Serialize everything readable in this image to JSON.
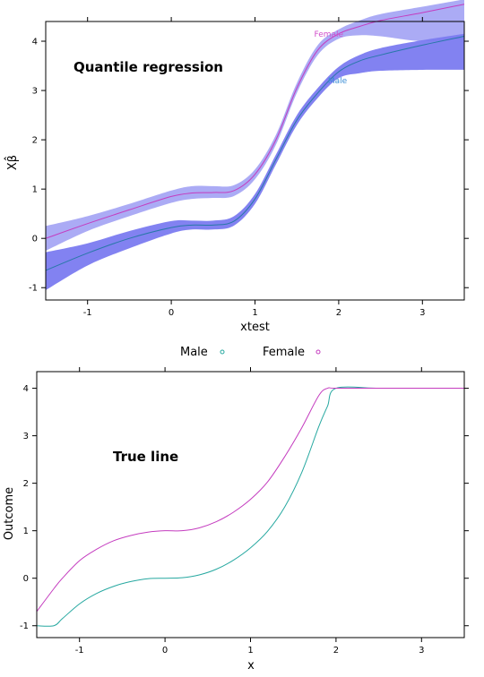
{
  "colors": {
    "male_line": "#2878a8",
    "female_line": "#c43cbf",
    "male_band": "#7b7bf0",
    "female_band": "#a7a7f4",
    "male_symbol": "#26a8a0",
    "female_symbol": "#c43cbf",
    "male_label": "#3d8fd6",
    "female_label": "#d24fcb"
  },
  "legend": {
    "items": [
      {
        "label": "Male",
        "symbol": "open-circle"
      },
      {
        "label": "Female",
        "symbol": "open-circle"
      }
    ]
  },
  "chart_data": [
    {
      "type": "area",
      "title": "Quantile regression",
      "xlabel": "xtest",
      "ylabel": "Xβ̂",
      "xlim": [
        -1.5,
        3.5
      ],
      "ylim": [
        -1.25,
        4.4
      ],
      "xticks": [
        -1,
        0,
        1,
        2,
        3
      ],
      "yticks": [
        -1,
        0,
        1,
        2,
        3,
        4
      ],
      "x": [
        -1.5,
        -1.0,
        -0.5,
        0.0,
        0.25,
        0.5,
        0.75,
        1.0,
        1.25,
        1.5,
        1.75,
        2.0,
        2.25,
        2.5,
        3.0,
        3.5
      ],
      "series": [
        {
          "name": "Male",
          "line": [
            -0.65,
            -0.3,
            0.0,
            0.22,
            0.27,
            0.27,
            0.35,
            0.8,
            1.6,
            2.4,
            2.95,
            3.38,
            3.6,
            3.72,
            3.92,
            4.1
          ],
          "lower": [
            -1.05,
            -0.55,
            -0.2,
            0.1,
            0.18,
            0.18,
            0.26,
            0.7,
            1.5,
            2.3,
            2.85,
            3.25,
            3.35,
            3.4,
            3.42,
            3.42
          ],
          "upper": [
            -0.28,
            -0.1,
            0.15,
            0.35,
            0.36,
            0.36,
            0.45,
            0.9,
            1.7,
            2.5,
            3.05,
            3.48,
            3.72,
            3.86,
            4.02,
            4.15
          ]
        },
        {
          "name": "Female",
          "line": [
            0.0,
            0.3,
            0.58,
            0.85,
            0.92,
            0.93,
            0.97,
            1.3,
            2.0,
            3.05,
            3.82,
            4.15,
            4.3,
            4.42,
            4.58,
            4.75
          ],
          "lower": [
            -0.25,
            0.15,
            0.45,
            0.72,
            0.8,
            0.82,
            0.86,
            1.2,
            1.9,
            2.95,
            3.72,
            4.05,
            4.12,
            4.1,
            4.0,
            4.05
          ],
          "upper": [
            0.25,
            0.45,
            0.7,
            0.97,
            1.06,
            1.06,
            1.08,
            1.4,
            2.1,
            3.15,
            3.92,
            4.24,
            4.42,
            4.55,
            4.7,
            4.85
          ]
        }
      ],
      "annotations": [
        {
          "text": "Female",
          "x": 1.9,
          "y": 4.15
        },
        {
          "text": "Male",
          "x": 2.0,
          "y": 3.2
        }
      ]
    },
    {
      "type": "line",
      "title": "True line",
      "xlabel": "x",
      "ylabel": "Outcome",
      "xlim": [
        -1.5,
        3.5
      ],
      "ylim": [
        -1.25,
        4.35
      ],
      "xticks": [
        -1,
        0,
        1,
        2,
        3
      ],
      "yticks": [
        -1,
        0,
        1,
        2,
        3,
        4
      ],
      "series": [
        {
          "name": "Male",
          "x": [
            -1.5,
            -1.3,
            -1.2,
            -1.0,
            -0.8,
            -0.6,
            -0.4,
            -0.2,
            0.0,
            0.2,
            0.4,
            0.6,
            0.8,
            1.0,
            1.2,
            1.4,
            1.6,
            1.8,
            1.9,
            2.0,
            2.5,
            3.0,
            3.5
          ],
          "values": [
            -1.0,
            -1.0,
            -0.85,
            -0.54,
            -0.32,
            -0.17,
            -0.07,
            -0.01,
            0.0,
            0.01,
            0.07,
            0.19,
            0.38,
            0.64,
            0.99,
            1.5,
            2.23,
            3.2,
            3.62,
            4.0,
            4.0,
            4.0,
            4.0
          ]
        },
        {
          "name": "Female",
          "x": [
            -1.5,
            -1.3,
            -1.2,
            -1.0,
            -0.8,
            -0.6,
            -0.4,
            -0.2,
            0.0,
            0.2,
            0.4,
            0.6,
            0.8,
            1.0,
            1.2,
            1.4,
            1.6,
            1.8,
            1.9,
            2.0,
            2.5,
            3.0,
            3.5
          ],
          "values": [
            -0.7,
            -0.22,
            0.0,
            0.37,
            0.61,
            0.79,
            0.9,
            0.97,
            1.0,
            1.0,
            1.06,
            1.19,
            1.39,
            1.66,
            2.03,
            2.56,
            3.17,
            3.85,
            4.0,
            4.0,
            4.0,
            4.0,
            4.0
          ]
        }
      ]
    }
  ]
}
